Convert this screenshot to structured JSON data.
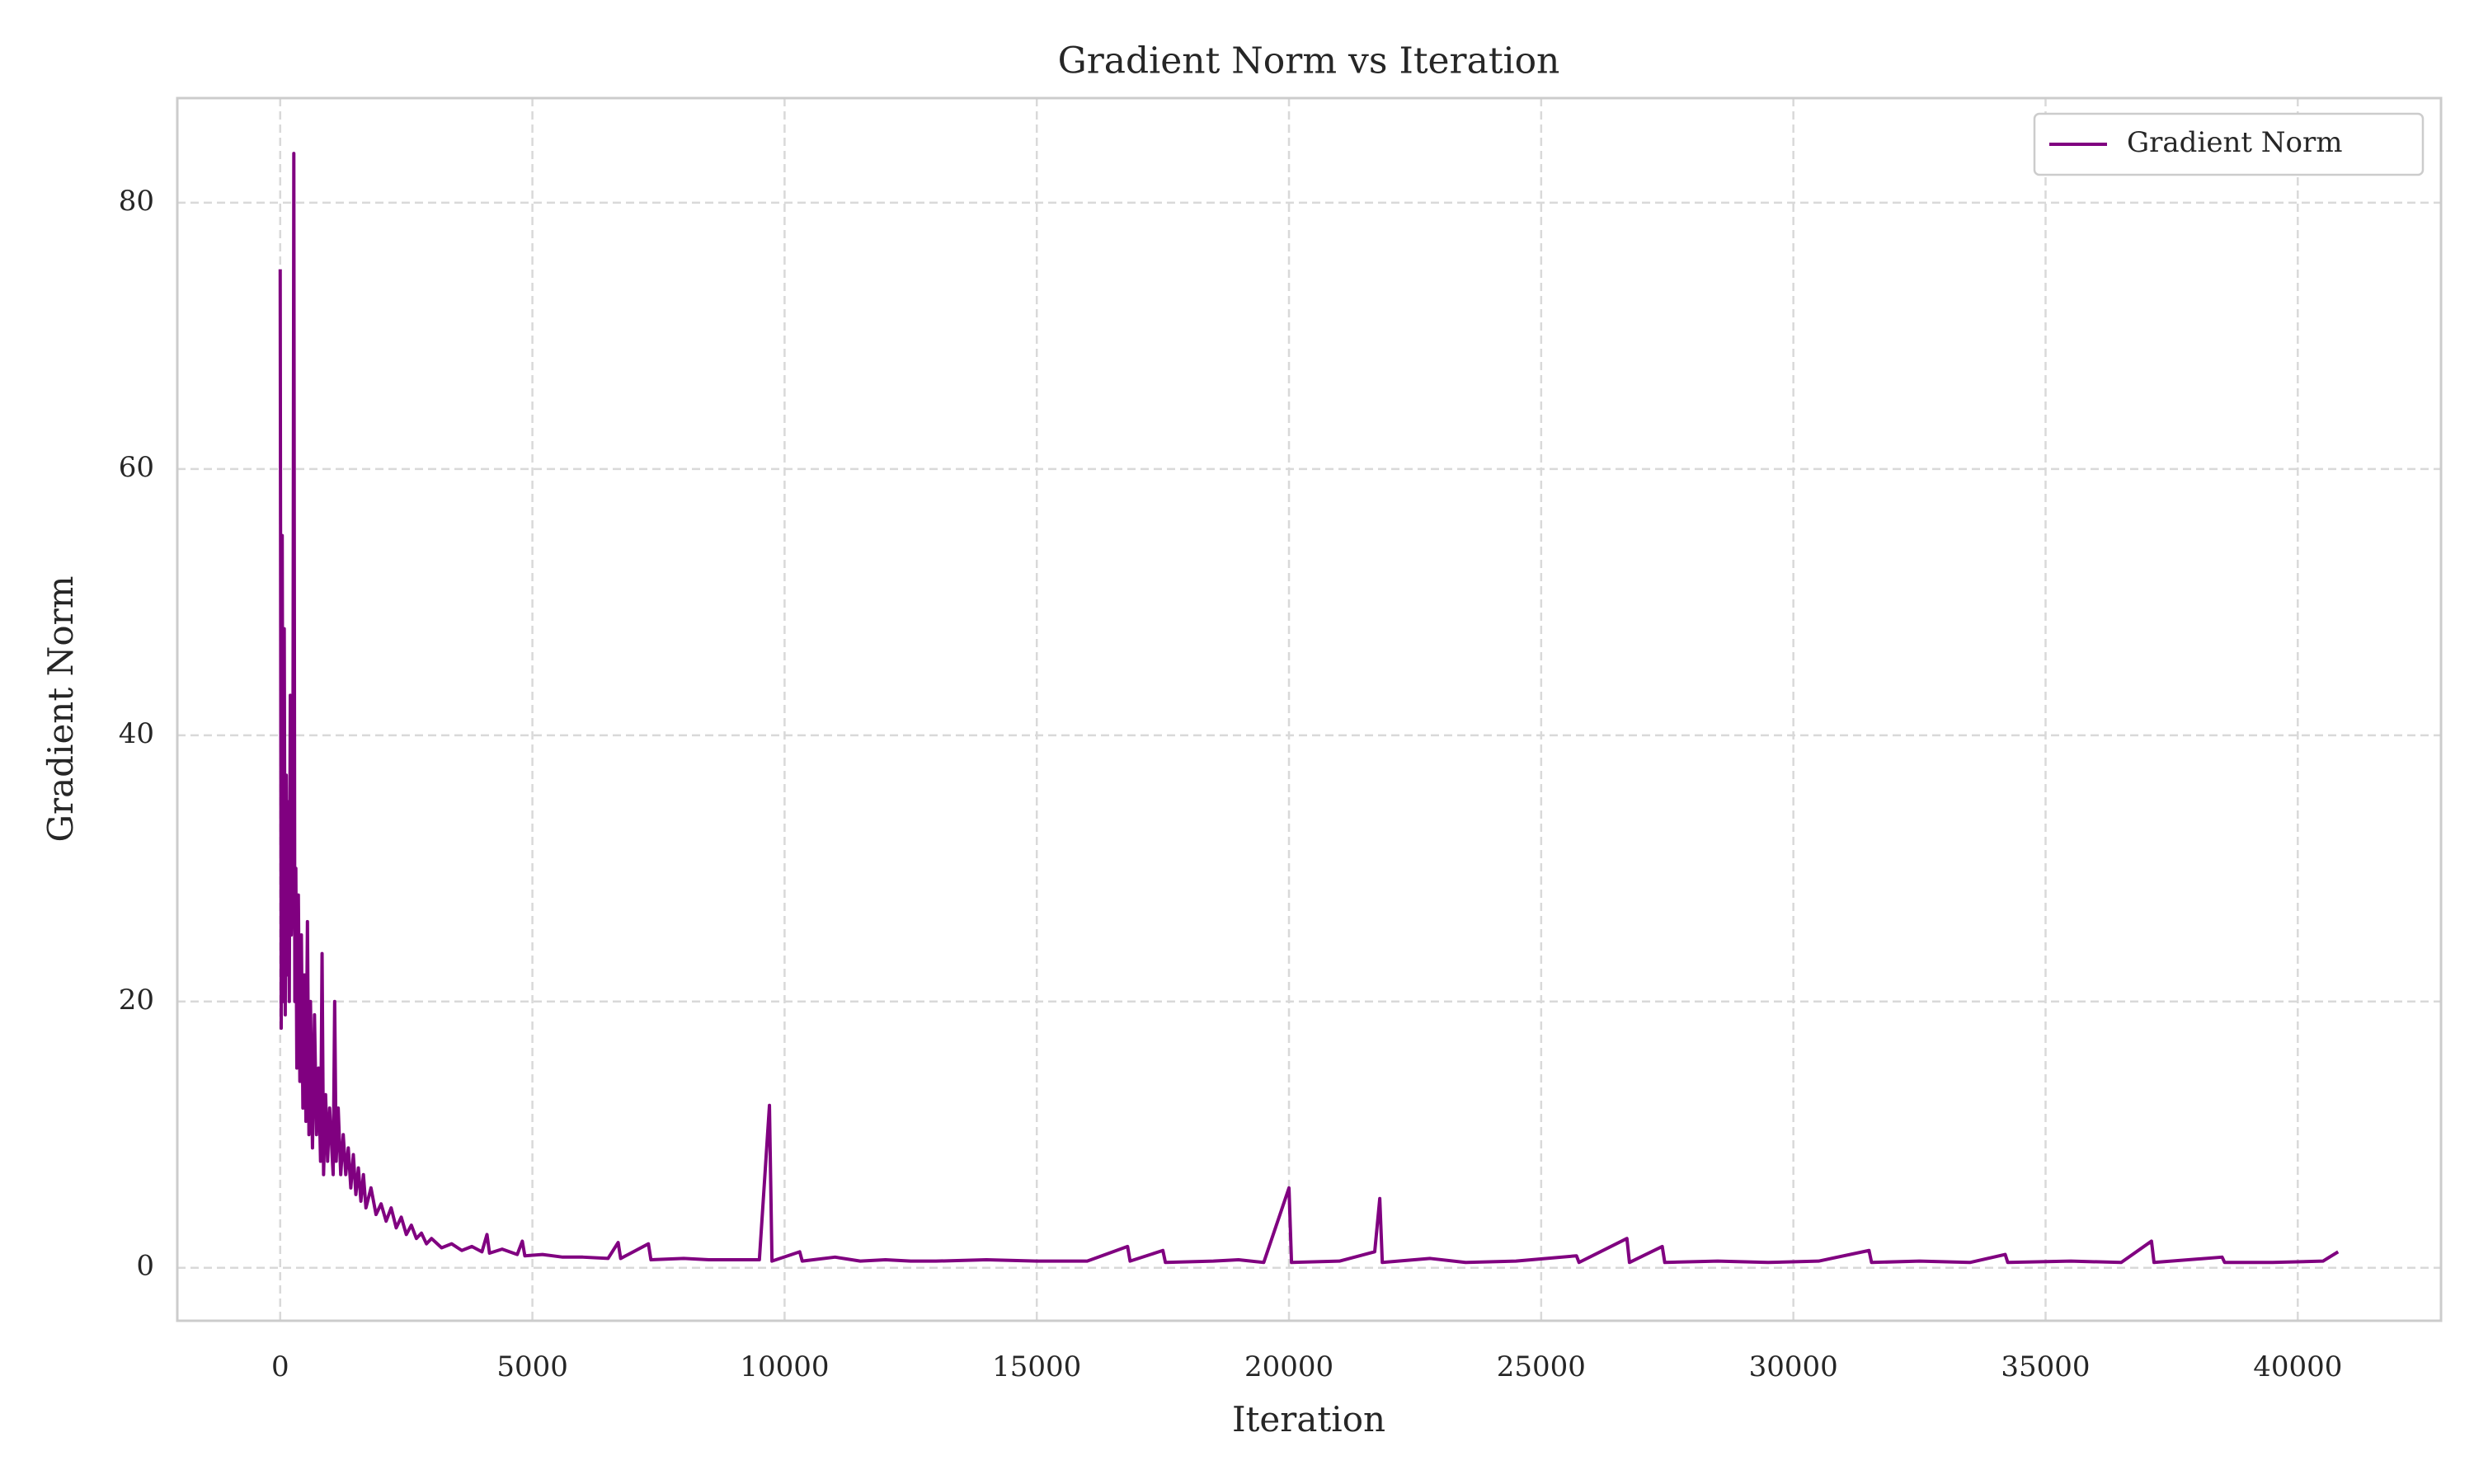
{
  "chart_data": {
    "type": "line",
    "title": "Gradient Norm vs Iteration",
    "x_label": "Iteration",
    "y_label": "Gradient Norm",
    "x": [
      0,
      20,
      40,
      60,
      80,
      100,
      120,
      140,
      160,
      180,
      200,
      220,
      250,
      270,
      290,
      310,
      330,
      360,
      390,
      420,
      450,
      480,
      510,
      540,
      570,
      600,
      640,
      680,
      720,
      760,
      800,
      830,
      860,
      900,
      940,
      980,
      1050,
      1080,
      1110,
      1150,
      1200,
      1250,
      1300,
      1350,
      1400,
      1450,
      1500,
      1550,
      1600,
      1650,
      1700,
      1800,
      1900,
      2000,
      2100,
      2200,
      2300,
      2400,
      2500,
      2600,
      2700,
      2800,
      2900,
      3000,
      3200,
      3400,
      3600,
      3800,
      4000,
      4100,
      4150,
      4400,
      4700,
      4800,
      4850,
      5200,
      5600,
      6000,
      6500,
      6700,
      6750,
      7300,
      7350,
      8000,
      8500,
      9000,
      9500,
      9700,
      9750,
      10300,
      10350,
      11000,
      11500,
      12000,
      12500,
      13000,
      14000,
      15000,
      16000,
      16800,
      16850,
      17500,
      17550,
      18500,
      19000,
      19500,
      20000,
      20050,
      21000,
      21700,
      21800,
      21850,
      22800,
      23500,
      24500,
      25700,
      25750,
      26700,
      26750,
      27400,
      27450,
      28500,
      29500,
      30500,
      31500,
      31550,
      32500,
      33500,
      34200,
      34250,
      35500,
      36500,
      37100,
      37150,
      38500,
      38550,
      39500,
      40500,
      40800
    ],
    "series": [
      {
        "name": "Gradient Norm",
        "color": "purple",
        "values": [
          75,
          18,
          55,
          20,
          48,
          19,
          37,
          22,
          35,
          20,
          43,
          25,
          30,
          83.7,
          20,
          30,
          15,
          28,
          14,
          25,
          12,
          22,
          11,
          26,
          10,
          20,
          9,
          19,
          10,
          15,
          8,
          23.6,
          7,
          13,
          8,
          12,
          7,
          20,
          8,
          12,
          7,
          10,
          7,
          9,
          6,
          8.5,
          5.5,
          7.5,
          5,
          7,
          4.5,
          6,
          4,
          4.8,
          3.5,
          4.5,
          3,
          3.8,
          2.5,
          3.2,
          2.2,
          2.6,
          1.8,
          2.2,
          1.5,
          1.8,
          1.3,
          1.6,
          1.2,
          2.5,
          1.1,
          1.4,
          1,
          2,
          0.9,
          1,
          0.8,
          0.8,
          0.7,
          1.9,
          0.7,
          1.8,
          0.6,
          0.7,
          0.6,
          0.6,
          0.6,
          12.2,
          0.5,
          1.2,
          0.5,
          0.8,
          0.5,
          0.6,
          0.5,
          0.5,
          0.6,
          0.5,
          0.5,
          1.6,
          0.5,
          1.3,
          0.4,
          0.5,
          0.6,
          0.4,
          6,
          0.4,
          0.5,
          1.2,
          5.2,
          0.4,
          0.7,
          0.4,
          0.5,
          0.9,
          0.4,
          2.2,
          0.4,
          1.6,
          0.4,
          0.5,
          0.4,
          0.5,
          1.3,
          0.4,
          0.5,
          0.4,
          1,
          0.4,
          0.5,
          0.4,
          2,
          0.4,
          0.8,
          0.4,
          0.4,
          0.5,
          1.2
        ]
      }
    ],
    "xlim": [
      -2040,
      42840
    ],
    "xticks": [
      0,
      5000,
      10000,
      15000,
      20000,
      25000,
      30000,
      35000,
      40000
    ],
    "ylim": [
      -3.98,
      87.86
    ],
    "yticks": [
      0,
      20,
      40,
      60,
      80
    ],
    "grid": true,
    "legend": "upper right"
  }
}
